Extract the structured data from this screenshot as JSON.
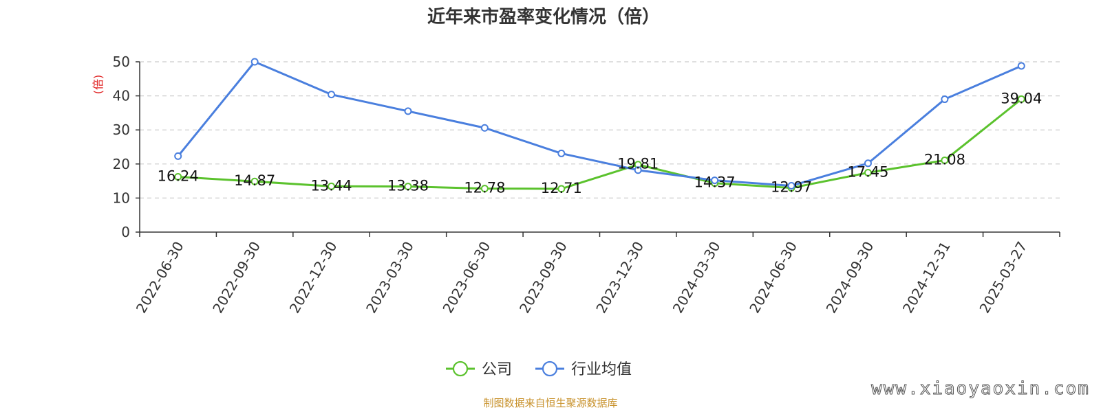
{
  "chart_data": {
    "type": "line",
    "title": "近年来市盈率变化情况（倍）",
    "ylabel": "(倍)",
    "xlabel": "",
    "categories": [
      "2022-06-30",
      "2022-09-30",
      "2022-12-30",
      "2023-03-30",
      "2023-06-30",
      "2023-09-30",
      "2023-12-30",
      "2024-03-30",
      "2024-06-30",
      "2024-09-30",
      "2024-12-31",
      "2025-03-27"
    ],
    "ylim": [
      0,
      50
    ],
    "yticks": [
      0,
      10,
      20,
      30,
      40,
      50
    ],
    "grid": true,
    "legend_position": "bottom-center",
    "series": [
      {
        "name": "公司",
        "color": "#5bc22d",
        "values": [
          16.24,
          14.87,
          13.44,
          13.38,
          12.78,
          12.71,
          19.81,
          14.37,
          12.97,
          17.45,
          21.08,
          39.04
        ],
        "labels": [
          "16.24",
          "14.87",
          "13.44",
          "13.38",
          "12.78",
          "12.71",
          "19.81",
          "14.37",
          "12.97",
          "17.45",
          "21.08",
          "39.04"
        ]
      },
      {
        "name": "行业均值",
        "color": "#4a7fde",
        "values": [
          22.3,
          50.0,
          40.4,
          35.5,
          30.6,
          23.1,
          18.2,
          15.2,
          13.6,
          20.2,
          39.0,
          48.8
        ]
      }
    ]
  },
  "source": "制图数据来自恒生聚源数据库",
  "watermark": "www.xiaoyaoxin.com",
  "colors": {
    "unit_label": "#e02020",
    "source_text": "#c8922c",
    "axis": "#333333",
    "grid": "#cccccc"
  }
}
